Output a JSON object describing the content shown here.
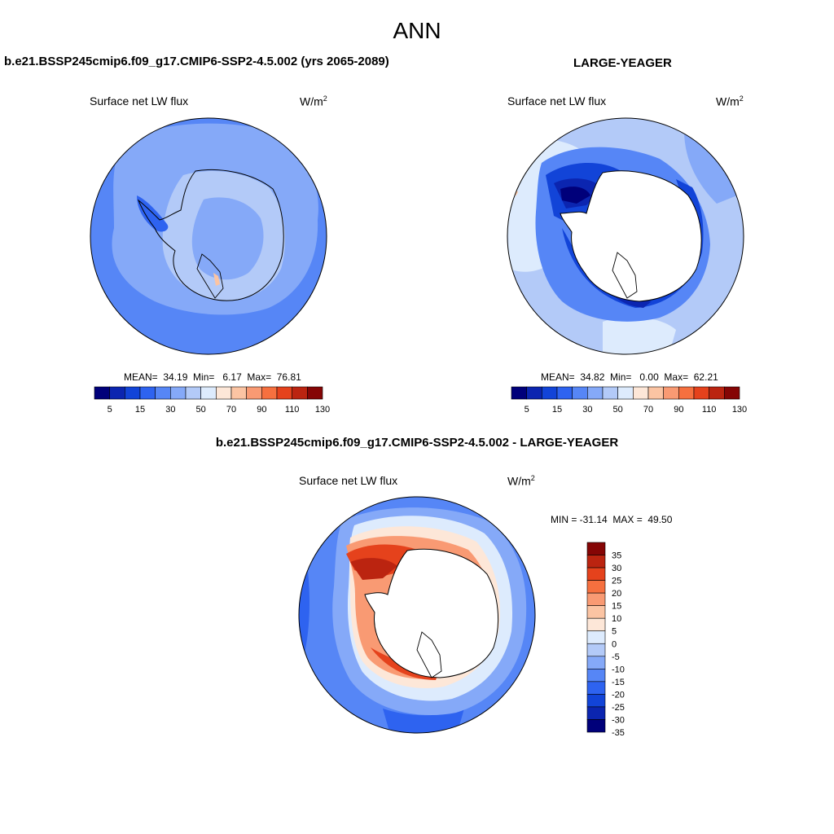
{
  "page_title": "ANN",
  "colors": {
    "abs_scale": [
      "#00007a",
      "#0b25b0",
      "#1244d8",
      "#2e63f0",
      "#5686f6",
      "#85a9f8",
      "#b3caf8",
      "#ddebfd",
      "#fde7d8",
      "#fbc4a3",
      "#f99a73",
      "#f6703f",
      "#e5421c",
      "#bb2410",
      "#850505"
    ],
    "diff_scale": [
      "#00007a",
      "#0b25b0",
      "#1244d8",
      "#2e63f0",
      "#5686f6",
      "#85a9f8",
      "#b3caf8",
      "#ddebfd",
      "#fde7d8",
      "#fbc4a3",
      "#f99a73",
      "#f6703f",
      "#e5421c",
      "#bb2410",
      "#850505"
    ],
    "coast": "#000000"
  },
  "panels": {
    "model": {
      "header": "b.e21.BSSP245cmip6.f09_g17.CMIP6-SSP2-4.5.002 (yrs 2065-2089)",
      "variable": "Surface net LW flux",
      "units": "W/m",
      "units_sup": "2",
      "stats": "MEAN=  34.19  Min=   6.17  Max=  76.81",
      "colorbar_ticks": [
        "5",
        "15",
        "30",
        "50",
        "70",
        "90",
        "110",
        "130"
      ]
    },
    "obs": {
      "header": "LARGE-YEAGER",
      "variable": "Surface net LW flux",
      "units": "W/m",
      "units_sup": "2",
      "stats": "MEAN=  34.82  Min=   0.00  Max=  62.21",
      "colorbar_ticks": [
        "5",
        "15",
        "30",
        "50",
        "70",
        "90",
        "110",
        "130"
      ]
    },
    "diff": {
      "header": "b.e21.BSSP245cmip6.f09_g17.CMIP6-SSP2-4.5.002 - LARGE-YEAGER",
      "variable": "Surface net LW flux",
      "units": "W/m",
      "units_sup": "2",
      "stats": "MIN = -31.14  MAX =  49.50",
      "colorbar_ticks": [
        "35",
        "30",
        "25",
        "20",
        "15",
        "10",
        "5",
        "0",
        "-5",
        "-10",
        "-15",
        "-20",
        "-25",
        "-30",
        "-35"
      ]
    }
  }
}
